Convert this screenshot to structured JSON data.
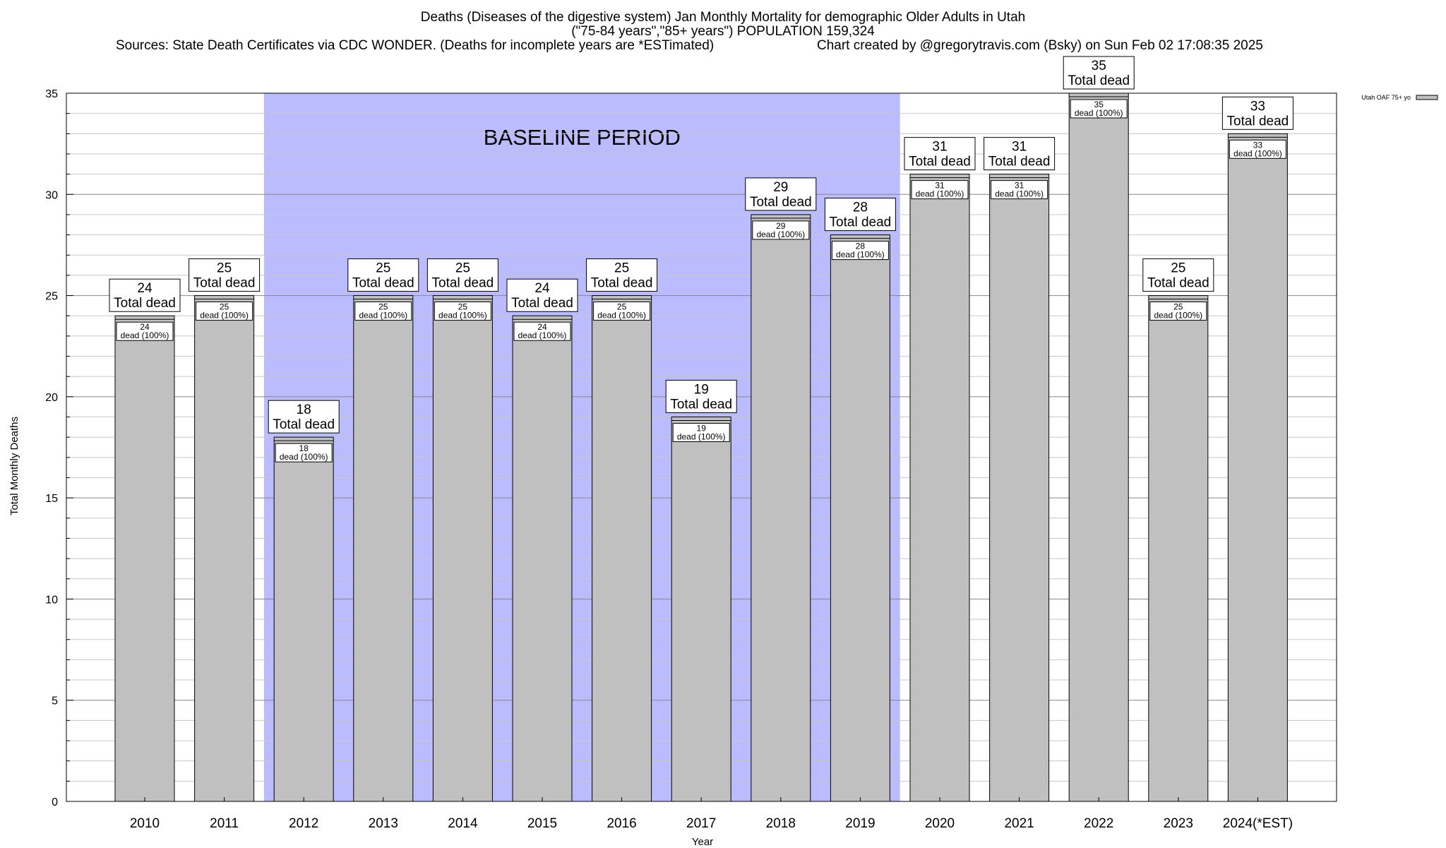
{
  "header": {
    "title_line1": "Deaths (Diseases of the digestive system) Jan Monthly Mortality for demographic Older Adults in Utah",
    "title_line2": "(\"75-84 years\",\"85+ years\") POPULATION 159,324",
    "sources": "Sources: State Death Certificates via CDC WONDER. (Deaths for incomplete years are *ESTimated)",
    "credit": "Chart created by @gregorytravis.com (Bsky) on Sun Feb 02 17:08:35 2025"
  },
  "chart_data": {
    "type": "bar",
    "title": "Deaths (Diseases of the digestive system) Jan Monthly Mortality for demographic Older Adults in Utah",
    "subtitle": "(\"75-84 years\",\"85+ years\") POPULATION 159,324",
    "xlabel": "Year",
    "ylabel": "Total Monthly Deaths",
    "ylim": [
      0,
      35
    ],
    "yticks": [
      0,
      5,
      10,
      15,
      20,
      25,
      30,
      35
    ],
    "grid": true,
    "legend_position": "top-right",
    "categories": [
      "2010",
      "2011",
      "2012",
      "2013",
      "2014",
      "2015",
      "2016",
      "2017",
      "2018",
      "2019",
      "2020",
      "2021",
      "2022",
      "2023",
      "2024(*EST)"
    ],
    "series": [
      {
        "name": "Utah OAF 75+ yo",
        "color": "#c0c0c0",
        "values": [
          24,
          25,
          18,
          25,
          25,
          24,
          25,
          19,
          29,
          28,
          31,
          31,
          35,
          25,
          33
        ]
      }
    ],
    "total_label": "Total dead",
    "inner_label_suffix": "dead (100%)",
    "annotation": {
      "text": "BASELINE PERIOD",
      "from": "2012",
      "to": "2019",
      "color": "#bbbbff"
    }
  }
}
